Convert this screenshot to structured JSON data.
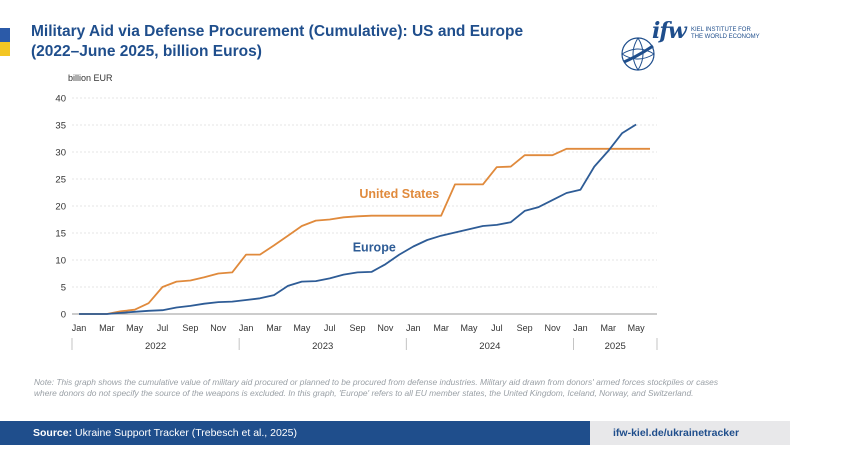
{
  "header": {
    "title_line1": "Military Aid via Defense Procurement (Cumulative): US and Europe",
    "title_line2": "(2022–June 2025, billion Euros)"
  },
  "logo": {
    "mark": "ifw",
    "text_line1": "KIEL INSTITUTE FOR",
    "text_line2": "THE WORLD ECONOMY",
    "icon": "globe-icon"
  },
  "colors": {
    "title": "#1f4e8c",
    "us": "#e08a3c",
    "europe": "#2e5c96",
    "footer": "#1f4e8c"
  },
  "chart_data": {
    "type": "line",
    "title": "Military Aid via Defense Procurement (Cumulative): US and Europe",
    "ylabel": "billion EUR",
    "ylim": [
      0,
      40
    ],
    "yticks": [
      0,
      5,
      10,
      15,
      20,
      25,
      30,
      35,
      40
    ],
    "grid": true,
    "x_tick_labels": [
      "Jan",
      "Mar",
      "May",
      "Jul",
      "Sep",
      "Nov",
      "Jan",
      "Mar",
      "May",
      "Jul",
      "Sep",
      "Nov",
      "Jan",
      "Mar",
      "May",
      "Jul",
      "Sep",
      "Nov",
      "Jan",
      "Mar",
      "May"
    ],
    "x_tick_months": [
      0,
      2,
      4,
      6,
      8,
      10,
      12,
      14,
      16,
      18,
      20,
      22,
      24,
      26,
      28,
      30,
      32,
      34,
      36,
      38,
      40
    ],
    "years": [
      {
        "label": "2022",
        "start": 0,
        "end": 12
      },
      {
        "label": "2023",
        "start": 12,
        "end": 24
      },
      {
        "label": "2024",
        "start": 24,
        "end": 36
      },
      {
        "label": "2025",
        "start": 36,
        "end": 42
      }
    ],
    "x_range": [
      -0.5,
      41.5
    ],
    "series": [
      {
        "name": "United States",
        "label_month": 23,
        "label_value": 21.5,
        "points": [
          [
            0,
            0
          ],
          [
            1,
            0
          ],
          [
            2,
            0
          ],
          [
            3,
            0.5
          ],
          [
            4,
            0.8
          ],
          [
            5,
            2
          ],
          [
            6,
            5
          ],
          [
            7,
            6
          ],
          [
            8,
            6.2
          ],
          [
            9,
            6.8
          ],
          [
            10,
            7.5
          ],
          [
            11,
            7.7
          ],
          [
            12,
            11
          ],
          [
            13,
            11
          ],
          [
            14,
            12.7
          ],
          [
            15,
            14.5
          ],
          [
            16,
            16.3
          ],
          [
            17,
            17.3
          ],
          [
            18,
            17.5
          ],
          [
            19,
            17.9
          ],
          [
            20,
            18.1
          ],
          [
            21,
            18.2
          ],
          [
            22,
            18.2
          ],
          [
            23,
            18.2
          ],
          [
            24,
            18.2
          ],
          [
            25,
            18.2
          ],
          [
            26,
            18.2
          ],
          [
            27,
            24
          ],
          [
            28,
            24
          ],
          [
            29,
            24
          ],
          [
            30,
            27.2
          ],
          [
            31,
            27.3
          ],
          [
            32,
            29.4
          ],
          [
            33,
            29.4
          ],
          [
            34,
            29.4
          ],
          [
            35,
            30.6
          ],
          [
            36,
            30.6
          ],
          [
            37,
            30.6
          ],
          [
            38,
            30.6
          ],
          [
            39,
            30.6
          ],
          [
            40,
            30.6
          ],
          [
            41,
            30.6
          ]
        ]
      },
      {
        "name": "Europe",
        "label_month": 21.2,
        "label_value": 11.6,
        "points": [
          [
            0,
            0
          ],
          [
            1,
            0
          ],
          [
            2,
            0
          ],
          [
            3,
            0.2
          ],
          [
            4,
            0.4
          ],
          [
            5,
            0.6
          ],
          [
            6,
            0.7
          ],
          [
            7,
            1.2
          ],
          [
            8,
            1.5
          ],
          [
            9,
            1.9
          ],
          [
            10,
            2.2
          ],
          [
            11,
            2.3
          ],
          [
            12,
            2.6
          ],
          [
            13,
            2.9
          ],
          [
            14,
            3.5
          ],
          [
            15,
            5.2
          ],
          [
            16,
            6
          ],
          [
            17,
            6.1
          ],
          [
            18,
            6.6
          ],
          [
            19,
            7.3
          ],
          [
            20,
            7.7
          ],
          [
            21,
            7.8
          ],
          [
            22,
            9.2
          ],
          [
            23,
            11
          ],
          [
            24,
            12.5
          ],
          [
            25,
            13.7
          ],
          [
            26,
            14.5
          ],
          [
            27,
            15.1
          ],
          [
            28,
            15.7
          ],
          [
            29,
            16.3
          ],
          [
            30,
            16.5
          ],
          [
            31,
            17
          ],
          [
            32,
            19.1
          ],
          [
            33,
            19.8
          ],
          [
            34,
            21.1
          ],
          [
            35,
            22.4
          ],
          [
            36,
            23
          ],
          [
            37,
            27.3
          ],
          [
            38,
            30.2
          ],
          [
            39,
            33.5
          ],
          [
            40,
            35.1
          ]
        ]
      }
    ]
  },
  "note": "Note: This graph shows the cumulative value of military aid procured or planned to be procured from defense industries. Military aid drawn from donors' armed forces stockpiles or cases where donors do not specify the source of the weapons is excluded. In this graph, 'Europe' refers to all EU member states, the United Kingdom, Iceland, Norway, and Switzerland.",
  "footer": {
    "source_label": "Source:",
    "source_text": "Ukraine Support Tracker (Trebesch et al., 2025)",
    "url": "ifw-kiel.de/ukrainetracker"
  }
}
